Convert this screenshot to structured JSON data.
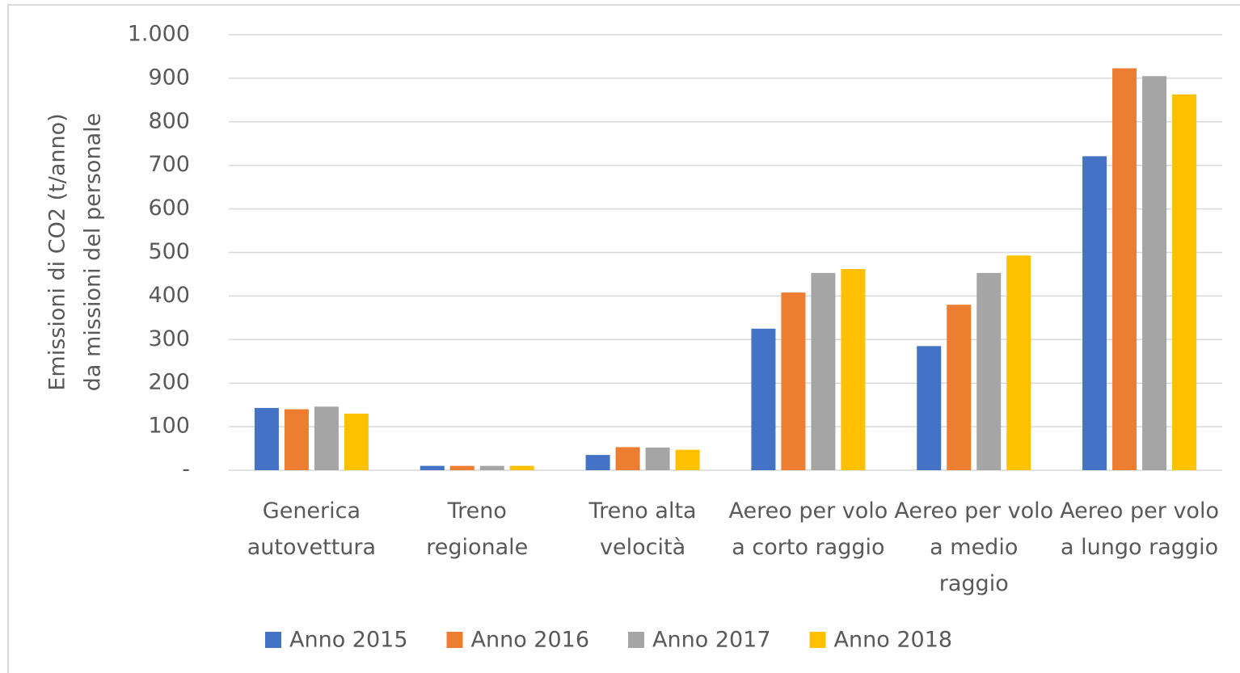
{
  "chart_data": {
    "type": "bar",
    "y_label": [
      "Emissioni di CO2 (t/anno)",
      "da missioni del personale"
    ],
    "categories": [
      "Generica autovettura",
      "Treno regionale",
      "Treno alta velocità",
      "Aereo per volo a corto raggio",
      "Aereo per volo a medio raggio",
      "Aereo per volo a lungo raggio"
    ],
    "series": [
      {
        "name": "Anno 2015",
        "color": "#4472c4",
        "values": [
          143,
          10,
          35,
          325,
          285,
          721
        ]
      },
      {
        "name": "Anno 2016",
        "color": "#ed7d31",
        "values": [
          140,
          10,
          53,
          408,
          380,
          923
        ]
      },
      {
        "name": "Anno 2017",
        "color": "#a5a5a5",
        "values": [
          146,
          10,
          52,
          453,
          453,
          905
        ]
      },
      {
        "name": "Anno 2018",
        "color": "#ffc000",
        "values": [
          130,
          10,
          47,
          462,
          493,
          863
        ]
      }
    ],
    "ylim": [
      0,
      1000
    ],
    "yticks": [
      {
        "value": 0,
        "label": "-"
      },
      100,
      200,
      300,
      400,
      500,
      600,
      700,
      800,
      900,
      {
        "value": 1000,
        "label": "1.000"
      }
    ],
    "grid": true,
    "legend": "bottom"
  }
}
